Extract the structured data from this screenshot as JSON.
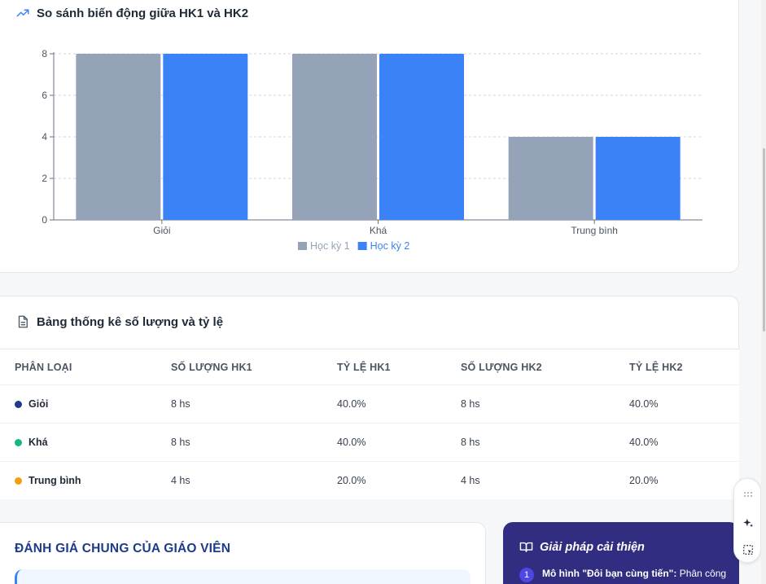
{
  "chart_card": {
    "title": "So sánh biến động giữa HK1 và HK2",
    "icon": "trending-up-icon"
  },
  "chart_data": {
    "type": "bar",
    "categories": [
      "Giỏi",
      "Khá",
      "Trung bình"
    ],
    "series": [
      {
        "name": "Học kỳ 1",
        "values": [
          8,
          8,
          4
        ],
        "color": "#94a3b8"
      },
      {
        "name": "Học kỳ 2",
        "values": [
          8,
          8,
          4
        ],
        "color": "#3b82f6"
      }
    ],
    "ylim": [
      0,
      8
    ],
    "yticks": [
      0,
      2,
      4,
      6,
      8
    ],
    "grid": true,
    "legend": "bottom-center",
    "xlabel": "",
    "ylabel": ""
  },
  "table_card": {
    "title": "Bảng thống kê số lượng và tỷ lệ",
    "icon": "document-icon",
    "headers": [
      "PHÂN LOẠI",
      "SỐ LƯỢNG HK1",
      "TỶ LỆ HK1",
      "SỐ LƯỢNG HK2",
      "TỶ LỆ HK2"
    ],
    "rows": [
      {
        "label": "Giỏi",
        "color": "#1e3a8a",
        "count_hk1": "8 hs",
        "rate_hk1": "40.0%",
        "count_hk2": "8 hs",
        "rate_hk2": "40.0%"
      },
      {
        "label": "Khá",
        "color": "#10b981",
        "count_hk1": "8 hs",
        "rate_hk1": "40.0%",
        "count_hk2": "8 hs",
        "rate_hk2": "40.0%"
      },
      {
        "label": "Trung bình",
        "color": "#f59e0b",
        "count_hk1": "4 hs",
        "rate_hk1": "20.0%",
        "count_hk2": "4 hs",
        "rate_hk2": "20.0%"
      }
    ]
  },
  "evaluation": {
    "title": "ĐÁNH GIÁ CHUNG CỦA GIÁO VIÊN"
  },
  "solutions": {
    "title": "Giải pháp cải thiện",
    "icon": "book-open-icon",
    "items": [
      {
        "number": "1",
        "bold": "Mô hình \"Đôi bạn cùng tiến\":",
        "text": " Phân công"
      }
    ]
  }
}
